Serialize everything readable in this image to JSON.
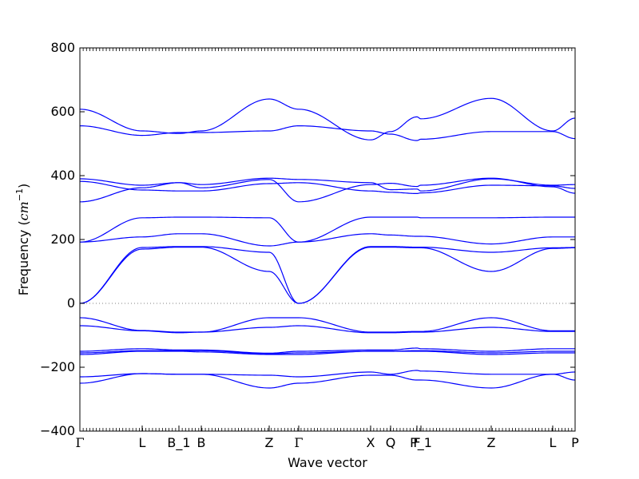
{
  "chart_data": {
    "type": "line",
    "title": "",
    "xlabel": "Wave vector",
    "ylabel_text": "Frequency (",
    "ylabel_unit": "cm",
    "ylabel_exp": "−1",
    "ylabel_close": ")",
    "ylim": [
      -400,
      800
    ],
    "yticks": [
      -400,
      -200,
      0,
      200,
      400,
      600,
      800
    ],
    "ytick_labels": [
      "−400",
      "−200",
      "0",
      "200",
      "400",
      "600",
      "800"
    ],
    "xlim": [
      0,
      1
    ],
    "grid": false,
    "line_color": "#0000ff",
    "zero_line": true,
    "high_symmetry_points": [
      {
        "label": "Γ",
        "x": 0.0
      },
      {
        "label": "L",
        "x": 0.1258
      },
      {
        "label": "B_1",
        "x": 0.2
      },
      {
        "label": "B",
        "x": 0.2452
      },
      {
        "label": "Z",
        "x": 0.3823
      },
      {
        "label": "Γ",
        "x": 0.4419
      },
      {
        "label": "X",
        "x": 0.5871
      },
      {
        "label": "Q",
        "x": 0.6274
      },
      {
        "label": "F",
        "x": 0.6806
      },
      {
        "label": "P_1",
        "x": 0.6887
      },
      {
        "label": "Z",
        "x": 0.8306
      },
      {
        "label": "L",
        "x": 0.9548
      },
      {
        "label": "P",
        "x": 1.0
      }
    ],
    "x": [
      0,
      0.1258,
      0.2,
      0.2452,
      0.3823,
      0.4419,
      0.5871,
      0.6274,
      0.6806,
      0.6887,
      0.8306,
      0.9548,
      1.0
    ],
    "series": [
      {
        "values": [
          608,
          540,
          532,
          540,
          640,
          608,
          512,
          538,
          584,
          578,
          642,
          540,
          580
        ]
      },
      {
        "values": [
          556,
          526,
          535,
          535,
          540,
          556,
          540,
          530,
          510,
          514,
          538,
          538,
          516
        ]
      },
      {
        "values": [
          390,
          370,
          378,
          372,
          392,
          388,
          378,
          356,
          358,
          352,
          390,
          370,
          372
        ]
      },
      {
        "values": [
          382,
          355,
          352,
          352,
          375,
          378,
          352,
          348,
          344,
          346,
          370,
          368,
          360
        ]
      },
      {
        "values": [
          318,
          362,
          378,
          362,
          388,
          318,
          372,
          376,
          366,
          370,
          392,
          365,
          345
        ]
      },
      {
        "values": [
          192,
          268,
          270,
          270,
          268,
          192,
          270,
          270,
          270,
          268,
          268,
          270,
          270
        ]
      },
      {
        "values": [
          192,
          208,
          218,
          218,
          180,
          192,
          218,
          214,
          210,
          210,
          186,
          208,
          208
        ]
      },
      {
        "values": [
          0,
          175,
          178,
          178,
          160,
          0,
          178,
          178,
          176,
          176,
          160,
          174,
          175
        ]
      },
      {
        "values": [
          0,
          170,
          176,
          176,
          100,
          0,
          176,
          176,
          174,
          174,
          100,
          172,
          174
        ]
      },
      {
        "values": [
          -45,
          -85,
          -90,
          -90,
          -45,
          -45,
          -90,
          -90,
          -88,
          -88,
          -45,
          -86,
          -86
        ]
      },
      {
        "values": [
          -70,
          -86,
          -92,
          -90,
          -75,
          -70,
          -92,
          -92,
          -90,
          -90,
          -75,
          -88,
          -88
        ]
      },
      {
        "values": [
          -150,
          -142,
          -146,
          -146,
          -156,
          -150,
          -146,
          -146,
          -140,
          -142,
          -150,
          -142,
          -142
        ]
      },
      {
        "values": [
          -155,
          -148,
          -148,
          -148,
          -158,
          -155,
          -150,
          -150,
          -148,
          -148,
          -155,
          -150,
          -150
        ]
      },
      {
        "values": [
          -160,
          -150,
          -150,
          -152,
          -160,
          -160,
          -150,
          -150,
          -150,
          -150,
          -160,
          -155,
          -155
        ]
      },
      {
        "values": [
          -230,
          -220,
          -222,
          -222,
          -225,
          -230,
          -215,
          -222,
          -210,
          -212,
          -222,
          -222,
          -215
        ]
      },
      {
        "values": [
          -250,
          -220,
          -222,
          -222,
          -265,
          -250,
          -225,
          -225,
          -240,
          -240,
          -265,
          -222,
          -240
        ]
      }
    ]
  }
}
